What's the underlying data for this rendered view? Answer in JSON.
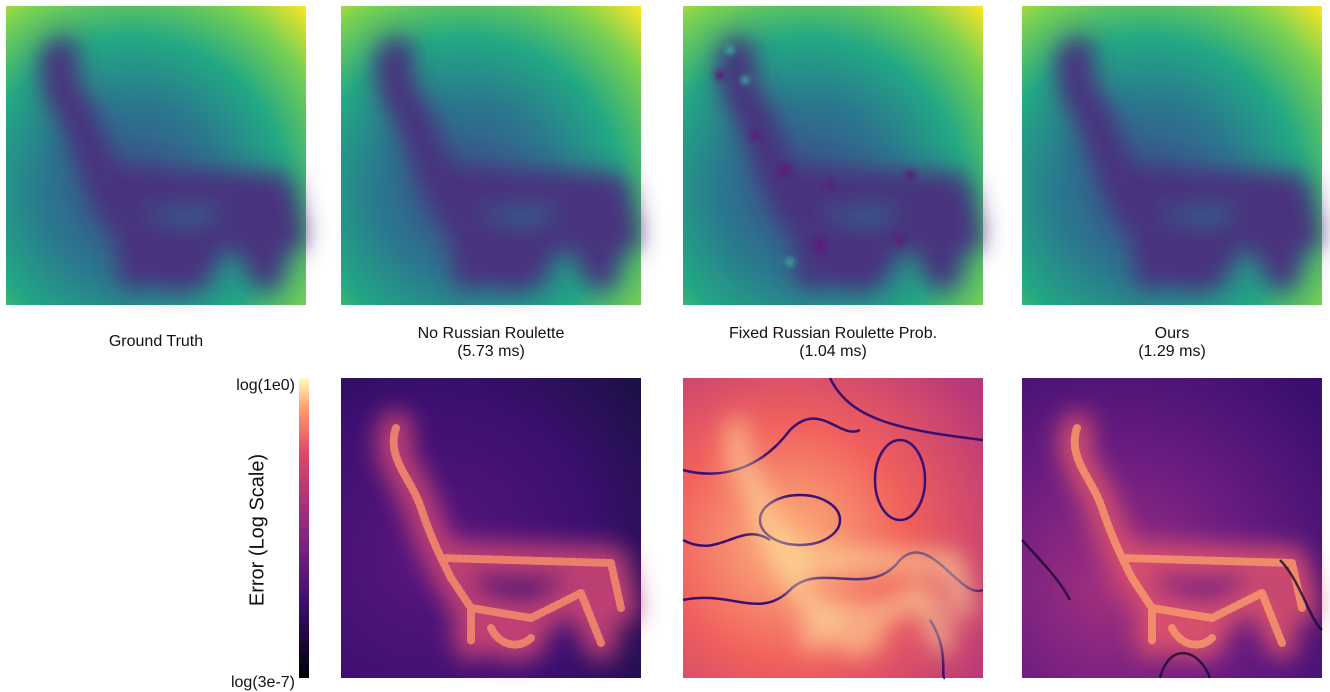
{
  "panels": [
    {
      "caption": "Ground Truth"
    },
    {
      "caption": "No Russian Roulette",
      "timing": "(5.73 ms)"
    },
    {
      "caption": "Fixed Russian Roulette Prob.",
      "timing": "(1.04 ms)"
    },
    {
      "caption": "Ours",
      "timing": "(1.29 ms)"
    }
  ],
  "colorbar": {
    "label": "Error (Log Scale)",
    "max_label": "log(1e0)",
    "min_label": "log(3e-7)"
  }
}
